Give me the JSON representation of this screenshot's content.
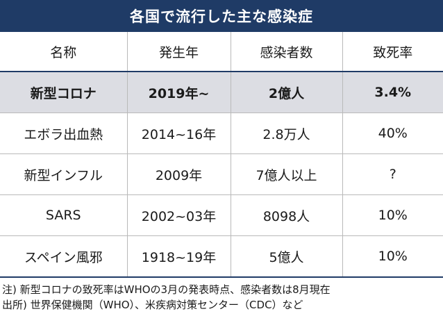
{
  "title": "各国で流行した主な感染症",
  "table": {
    "headers": [
      "名称",
      "発生年",
      "感染者数",
      "致死率"
    ],
    "rows": [
      {
        "name": "新型コロナ",
        "year": "2019年~",
        "infected": "2億人",
        "fatality": "3.4%"
      },
      {
        "name": "エボラ出血熱",
        "year": "2014~16年",
        "infected": "2.8万人",
        "fatality": "40%"
      },
      {
        "name": "新型インフル",
        "year": "2009年",
        "infected": "7億人以上",
        "fatality": "?"
      },
      {
        "name": "SARS",
        "year": "2002~03年",
        "infected": "8098人",
        "fatality": "10%"
      },
      {
        "name": "スペイン風邪",
        "year": "1918~19年",
        "infected": "5億人",
        "fatality": "10%"
      }
    ]
  },
  "notes": {
    "note": "注) 新型コロナの致死率はWHOの3月の発表時点、感染者数は8月現在",
    "source": "出所) 世界保健機関（WHO）、米疾病対策センター（CDC）など"
  },
  "colors": {
    "header_bar": "#1f3b66",
    "highlight_row": "#dcdde3",
    "grid_lines": "#b9b9b9"
  }
}
